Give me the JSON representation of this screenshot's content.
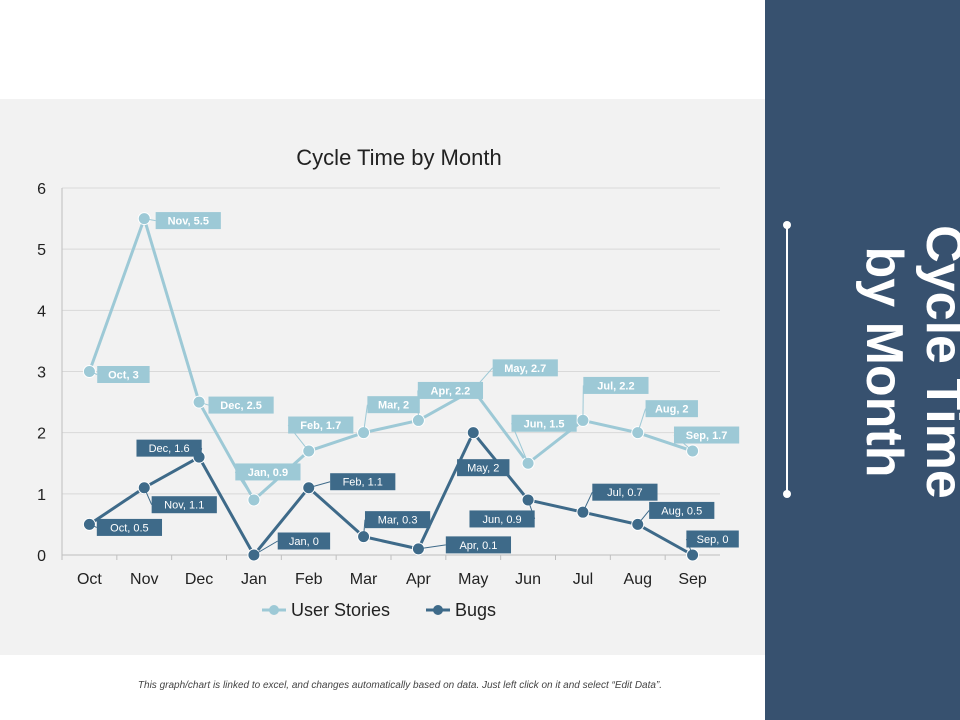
{
  "side": {
    "title": "Cycle Time\nby Month"
  },
  "footnote": "This graph/chart is linked to excel, and changes automatically based on data. Just left click on it and select “Edit Data”.",
  "colors": {
    "user_stories": "#9dc9d6",
    "bugs": "#3e6a89",
    "panel": "#f2f2f2",
    "side": "#37516f",
    "grid": "#d9d9d9"
  },
  "chart_data": {
    "type": "line",
    "title": "Cycle Time by Month",
    "categories": [
      "Oct",
      "Nov",
      "Dec",
      "Jan",
      "Feb",
      "Mar",
      "Apr",
      "May",
      "Jun",
      "Jul",
      "Aug",
      "Sep"
    ],
    "ylim": [
      0,
      6
    ],
    "yticks": [
      0,
      1,
      2,
      3,
      4,
      5,
      6
    ],
    "grid": true,
    "legend": "bottom",
    "series": [
      {
        "name": "User Stories",
        "values": [
          3,
          5.5,
          2.5,
          0.9,
          1.7,
          2,
          2.2,
          2.7,
          1.5,
          2.2,
          2,
          1.7
        ],
        "labels": [
          "Oct, 3",
          "Nov, 5.5",
          "Dec, 2.5",
          "Jan, 0.9",
          "Feb, 1.7",
          "Mar, 2",
          "Apr, 2.2",
          "May, 2.7",
          "Jun, 1.5",
          "Jul, 2.2",
          "Aug, 2",
          "Sep, 1.7"
        ]
      },
      {
        "name": "Bugs",
        "values": [
          0.5,
          1.1,
          1.6,
          0,
          1.1,
          0.3,
          0.1,
          2,
          0.9,
          0.7,
          0.5,
          0
        ],
        "labels": [
          "Oct, 0.5",
          "Nov, 1.1",
          "Dec, 1.6",
          "Jan, 0",
          "Feb, 1.1",
          "Mar, 0.3",
          "Apr, 0.1",
          "May, 2",
          "Jun, 0.9",
          "Jul, 0.7",
          "Aug, 0.5",
          "Sep, 0"
        ]
      }
    ]
  }
}
